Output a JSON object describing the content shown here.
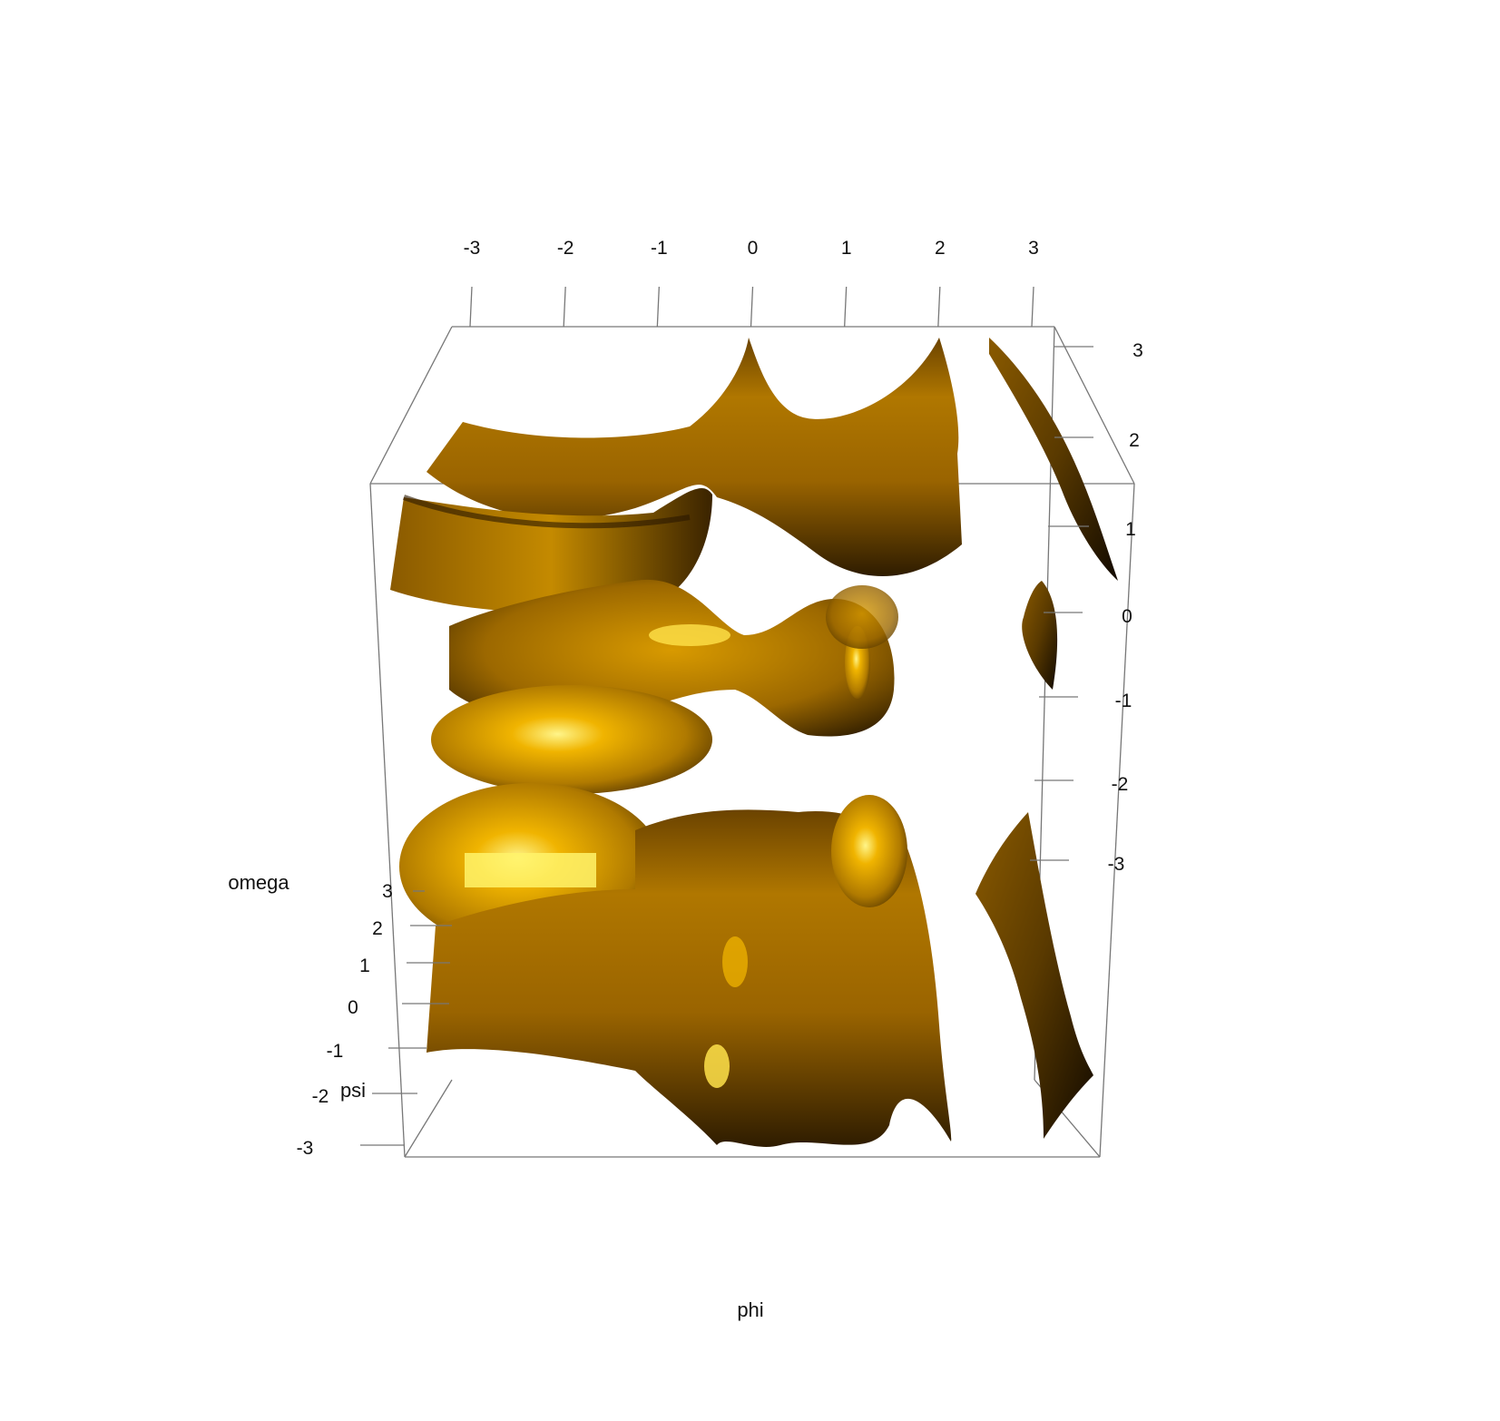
{
  "chart_data": {
    "type": "isosurface-3d",
    "xlabel": "phi",
    "ylabel": "psi",
    "zlabel": "omega",
    "x_ticks": [
      "-3",
      "-2",
      "-1",
      "0",
      "1",
      "2",
      "3"
    ],
    "y_ticks": [
      "-3",
      "-2",
      "-1",
      "0",
      "1",
      "2",
      "3"
    ],
    "z_ticks": [
      "3",
      "2",
      "1",
      "0",
      "-1",
      "-2",
      "-3"
    ],
    "xlim": [
      -3.14,
      3.14
    ],
    "ylim": [
      -3.14,
      3.14
    ],
    "zlim": [
      -3.14,
      3.14
    ],
    "surface_color": "#b8860b",
    "highlight_color": "#fff36a",
    "shadow_color": "#1a0f00",
    "box_color": "#777777",
    "grid": false
  }
}
